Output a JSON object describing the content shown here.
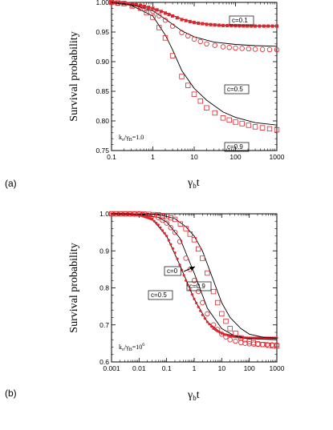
{
  "chart_data": [
    {
      "panel_label": "(a)",
      "type": "scatter",
      "x_scale": "log",
      "xlabel": "γ",
      "xlabel_sub": "b",
      "xlabel_suffix": "t",
      "ylabel": "Survival probability",
      "xlim": [
        0.1,
        1000
      ],
      "ylim": [
        0.75,
        1.0
      ],
      "x_ticks": [
        "0.1",
        "1",
        "10",
        "100",
        "1000"
      ],
      "y_ticks": [
        "0.75",
        "0.80",
        "0.85",
        "0.90",
        "0.95",
        "1.00"
      ],
      "annotation": {
        "prefix": "k",
        "sub1": "o",
        "mid": "/γ",
        "sub2": "B",
        "suffix": "=1.0"
      },
      "series": [
        {
          "name": "c=0.1",
          "marker": "filled-square",
          "points": [
            [
              0.1,
              1.0
            ],
            [
              0.2,
              0.999
            ],
            [
              0.5,
              0.995
            ],
            [
              1,
              0.99
            ],
            [
              2,
              0.982
            ],
            [
              3,
              0.977
            ],
            [
              5,
              0.971
            ],
            [
              10,
              0.966
            ],
            [
              20,
              0.963
            ],
            [
              50,
              0.961
            ],
            [
              100,
              0.9605
            ],
            [
              300,
              0.96
            ],
            [
              1000,
              0.96
            ]
          ],
          "fit": [
            [
              0.1,
              1.0
            ],
            [
              0.3,
              0.997
            ],
            [
              1,
              0.99
            ],
            [
              2,
              0.983
            ],
            [
              5,
              0.972
            ],
            [
              10,
              0.966
            ],
            [
              30,
              0.962
            ],
            [
              100,
              0.9605
            ],
            [
              1000,
              0.96
            ]
          ]
        },
        {
          "name": "c=0.5",
          "marker": "open-circle",
          "points": [
            [
              0.1,
              1.0
            ],
            [
              0.2,
              0.998
            ],
            [
              0.5,
              0.993
            ],
            [
              1,
              0.985
            ],
            [
              2,
              0.97
            ],
            [
              3,
              0.96
            ],
            [
              5,
              0.949
            ],
            [
              10,
              0.938
            ],
            [
              20,
              0.93
            ],
            [
              50,
              0.925
            ],
            [
              100,
              0.923
            ],
            [
              300,
              0.921
            ],
            [
              1000,
              0.92
            ]
          ],
          "fit": [
            [
              0.1,
              1.0
            ],
            [
              0.3,
              0.996
            ],
            [
              1,
              0.986
            ],
            [
              2,
              0.972
            ],
            [
              5,
              0.952
            ],
            [
              10,
              0.942
            ],
            [
              30,
              0.933
            ],
            [
              100,
              0.929
            ],
            [
              300,
              0.927
            ],
            [
              1000,
              0.926
            ]
          ]
        },
        {
          "name": "c=0.9",
          "marker": "open-square",
          "points": [
            [
              0.1,
              1.0
            ],
            [
              0.2,
              0.998
            ],
            [
              0.5,
              0.99
            ],
            [
              1,
              0.975
            ],
            [
              2,
              0.94
            ],
            [
              3,
              0.91
            ],
            [
              5,
              0.875
            ],
            [
              10,
              0.845
            ],
            [
              20,
              0.822
            ],
            [
              50,
              0.805
            ],
            [
              100,
              0.798
            ],
            [
              300,
              0.79
            ],
            [
              1000,
              0.785
            ]
          ],
          "fit": [
            [
              0.1,
              1.0
            ],
            [
              0.3,
              0.995
            ],
            [
              1,
              0.977
            ],
            [
              2,
              0.945
            ],
            [
              3,
              0.92
            ],
            [
              5,
              0.885
            ],
            [
              10,
              0.855
            ],
            [
              20,
              0.835
            ],
            [
              50,
              0.815
            ],
            [
              100,
              0.806
            ],
            [
              300,
              0.797
            ],
            [
              1000,
              0.793
            ]
          ]
        }
      ]
    },
    {
      "panel_label": "(b)",
      "type": "scatter",
      "x_scale": "log",
      "xlabel": "γ",
      "xlabel_sub": "b",
      "xlabel_suffix": "t",
      "ylabel": "Survival probability",
      "xlim": [
        0.001,
        1000
      ],
      "ylim": [
        0.6,
        1.0
      ],
      "x_ticks": [
        "0.001",
        "0.01",
        "0.1",
        "1",
        "10",
        "100",
        "1000"
      ],
      "y_ticks": [
        "0.6",
        "0.7",
        "0.8",
        "0.9",
        "1.0"
      ],
      "annotation": {
        "prefix": "k",
        "sub1": "o",
        "mid": "/γ",
        "sub2": "B",
        "suffix": "=10",
        "sup": "6"
      },
      "series": [
        {
          "name": "c=0",
          "marker": "filled-dot",
          "points": [
            [
              0.001,
              1.0
            ],
            [
              0.005,
              0.999
            ],
            [
              0.01,
              0.997
            ],
            [
              0.03,
              0.985
            ],
            [
              0.05,
              0.97
            ],
            [
              0.1,
              0.94
            ],
            [
              0.2,
              0.895
            ],
            [
              0.3,
              0.862
            ],
            [
              0.5,
              0.82
            ],
            [
              1,
              0.77
            ],
            [
              2,
              0.727
            ],
            [
              3,
              0.708
            ],
            [
              5,
              0.69
            ],
            [
              10,
              0.677
            ],
            [
              20,
              0.67
            ],
            [
              50,
              0.666
            ],
            [
              100,
              0.665
            ],
            [
              1000,
              0.665
            ]
          ],
          "fit": [
            [
              0.001,
              1.0
            ],
            [
              0.01,
              0.997
            ],
            [
              0.03,
              0.985
            ],
            [
              0.1,
              0.94
            ],
            [
              0.3,
              0.862
            ],
            [
              1,
              0.77
            ],
            [
              3,
              0.708
            ],
            [
              10,
              0.677
            ],
            [
              100,
              0.665
            ],
            [
              1000,
              0.665
            ]
          ]
        },
        {
          "name": "c=0.5",
          "marker": "open-circle",
          "points": [
            [
              0.001,
              1.0
            ],
            [
              0.01,
              0.999
            ],
            [
              0.03,
              0.994
            ],
            [
              0.05,
              0.99
            ],
            [
              0.1,
              0.975
            ],
            [
              0.2,
              0.95
            ],
            [
              0.3,
              0.925
            ],
            [
              0.5,
              0.88
            ],
            [
              1,
              0.82
            ],
            [
              2,
              0.76
            ],
            [
              3,
              0.73
            ],
            [
              5,
              0.7
            ],
            [
              10,
              0.675
            ],
            [
              20,
              0.66
            ],
            [
              50,
              0.652
            ],
            [
              100,
              0.649
            ],
            [
              300,
              0.647
            ],
            [
              1000,
              0.646
            ]
          ],
          "fit": [
            [
              0.001,
              1.0
            ],
            [
              0.01,
              0.999
            ],
            [
              0.05,
              0.99
            ],
            [
              0.1,
              0.978
            ],
            [
              0.3,
              0.935
            ],
            [
              1,
              0.84
            ],
            [
              3,
              0.745
            ],
            [
              10,
              0.69
            ],
            [
              30,
              0.67
            ],
            [
              100,
              0.663
            ],
            [
              1000,
              0.66
            ]
          ]
        },
        {
          "name": "c=0.9",
          "marker": "open-square",
          "points": [
            [
              0.001,
              1.0
            ],
            [
              0.01,
              1.0
            ],
            [
              0.05,
              0.997
            ],
            [
              0.1,
              0.993
            ],
            [
              0.2,
              0.985
            ],
            [
              0.5,
              0.96
            ],
            [
              1,
              0.93
            ],
            [
              2,
              0.88
            ],
            [
              3,
              0.84
            ],
            [
              5,
              0.79
            ],
            [
              10,
              0.73
            ],
            [
              20,
              0.69
            ],
            [
              50,
              0.665
            ],
            [
              100,
              0.655
            ],
            [
              200,
              0.649
            ],
            [
              500,
              0.645
            ],
            [
              1000,
              0.643
            ]
          ],
          "fit": [
            [
              0.001,
              1.0
            ],
            [
              0.05,
              0.998
            ],
            [
              0.2,
              0.987
            ],
            [
              0.5,
              0.965
            ],
            [
              1,
              0.94
            ],
            [
              2,
              0.9
            ],
            [
              5,
              0.82
            ],
            [
              10,
              0.76
            ],
            [
              20,
              0.72
            ],
            [
              50,
              0.69
            ],
            [
              100,
              0.675
            ],
            [
              300,
              0.667
            ],
            [
              1000,
              0.664
            ]
          ]
        }
      ]
    }
  ]
}
